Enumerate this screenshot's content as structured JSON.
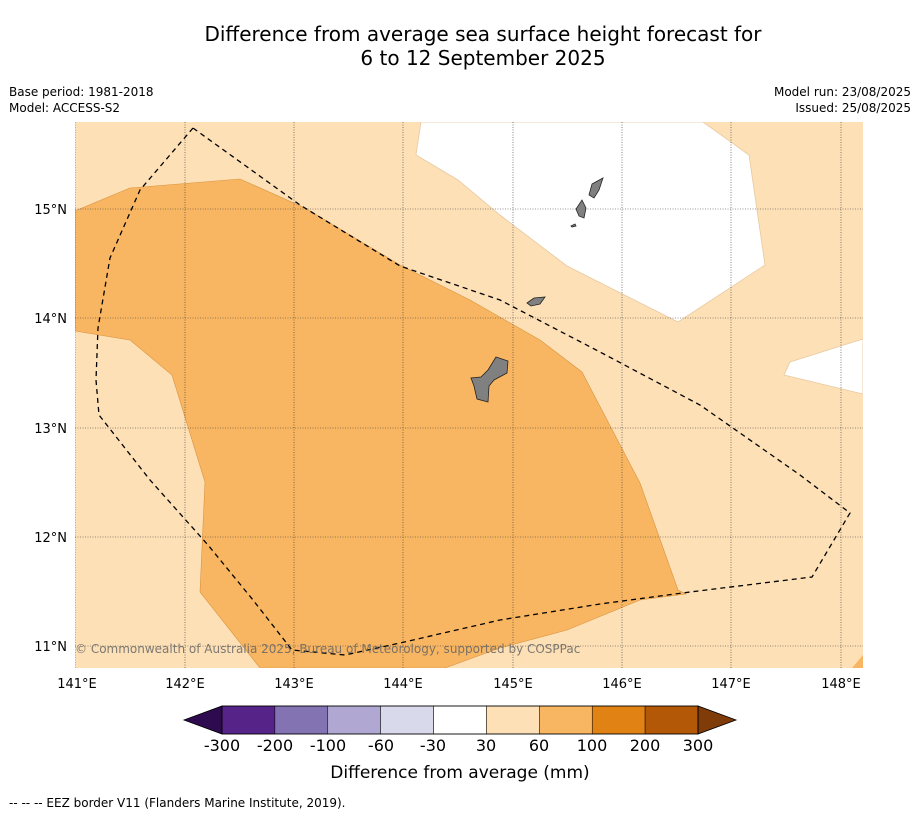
{
  "title": {
    "line1": "Difference from average sea surface height forecast for",
    "line2": "6 to 12 September 2025"
  },
  "meta_left": {
    "base_period": "Base period: 1981-2018",
    "model": "Model: ACCESS-S2"
  },
  "meta_right": {
    "model_run": "Model run: 23/08/2025",
    "issued": "Issued: 25/08/2025"
  },
  "map": {
    "lon_ticks": [
      "141°E",
      "142°E",
      "143°E",
      "144°E",
      "145°E",
      "146°E",
      "147°E",
      "148°E"
    ],
    "lat_ticks": [
      "15°N",
      "14°N",
      "13°N",
      "12°N",
      "11°N"
    ],
    "copyright": "© Commonwealth of Australia 2025, Bureau of Meteorology, supported by COSPPac",
    "land_color": "#808080",
    "eez_line_color": "#000000"
  },
  "colorbar": {
    "ticks": [
      "-300",
      "-200",
      "-100",
      "-60",
      "-30",
      "30",
      "60",
      "100",
      "200",
      "300"
    ],
    "colors": [
      "#2d0b4e",
      "#562388",
      "#8473b3",
      "#b0a8d3",
      "#d9d9ec",
      "#ffffff",
      "#fde0b6",
      "#f9b662",
      "#e08214",
      "#b35806",
      "#7f3b08"
    ],
    "label": "Difference from average (mm)"
  },
  "legend_note": "-- -- -- EEZ border V11 (Flanders Marine Institute, 2019)."
}
